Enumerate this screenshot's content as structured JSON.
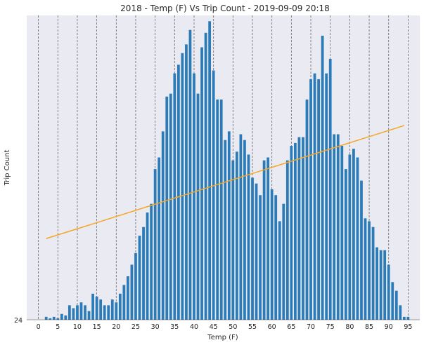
{
  "chart_data": {
    "type": "bar",
    "title": "2018 - Temp (F) Vs Trip Count - 2019-09-09 20:18",
    "xlabel": "Temp (F)",
    "ylabel": "Trip Count",
    "x_ticks": [
      0,
      5,
      10,
      15,
      20,
      25,
      30,
      35,
      40,
      45,
      50,
      55,
      60,
      65,
      70,
      75,
      80,
      85,
      90,
      95
    ],
    "xlim": [
      -3,
      98
    ],
    "ylim": [
      0,
      105
    ],
    "grid": "vertical dashed lines at x ticks",
    "colors": {
      "bars": "#2b7bb9",
      "trend": "#f5a623",
      "plot_bg": "#eaeaf2",
      "grid": "#666666"
    },
    "series": [
      {
        "x": [
          2,
          3,
          4,
          5,
          6,
          7,
          8,
          9,
          10,
          11,
          12,
          13,
          14,
          15,
          16,
          17,
          18,
          19,
          20,
          21,
          22,
          23,
          24,
          25,
          26,
          27,
          28,
          29,
          30,
          31,
          32,
          33,
          34,
          35,
          36,
          37,
          38,
          39,
          40,
          41,
          42,
          43,
          44,
          45,
          46,
          47,
          48,
          49,
          50,
          51,
          52,
          53,
          54,
          55,
          56,
          57,
          58,
          59,
          60,
          61,
          62,
          63,
          64,
          65,
          66,
          67,
          68,
          69,
          70,
          71,
          72,
          73,
          74,
          75,
          76,
          77,
          78,
          79,
          80,
          81,
          82,
          83,
          84,
          85,
          86,
          87,
          88,
          89,
          90,
          91,
          92,
          93,
          94,
          95
        ],
        "values": [
          1,
          0.5,
          1,
          0.5,
          2,
          1.5,
          5,
          4,
          5,
          6,
          5,
          3,
          9,
          8,
          7,
          5,
          5,
          7,
          6,
          9,
          12,
          15,
          19,
          23,
          29,
          32,
          37,
          40,
          52,
          56,
          65,
          77,
          78,
          85,
          88,
          92,
          95,
          100,
          85,
          78,
          94,
          99,
          103,
          86,
          76,
          76,
          62,
          65,
          55,
          58,
          64,
          62,
          57,
          49,
          47,
          43,
          55,
          56,
          45,
          43,
          34,
          40,
          55,
          60,
          61,
          63,
          63,
          76,
          83,
          85,
          83,
          98,
          85,
          90,
          64,
          64,
          60,
          52,
          57,
          59,
          56,
          48,
          35,
          34,
          32,
          25,
          24,
          24,
          19,
          13,
          10,
          5,
          1,
          1
        ]
      },
      {
        "name": "trend",
        "type": "line",
        "x": [
          2,
          94
        ],
        "values": [
          28,
          67
        ]
      }
    ]
  }
}
